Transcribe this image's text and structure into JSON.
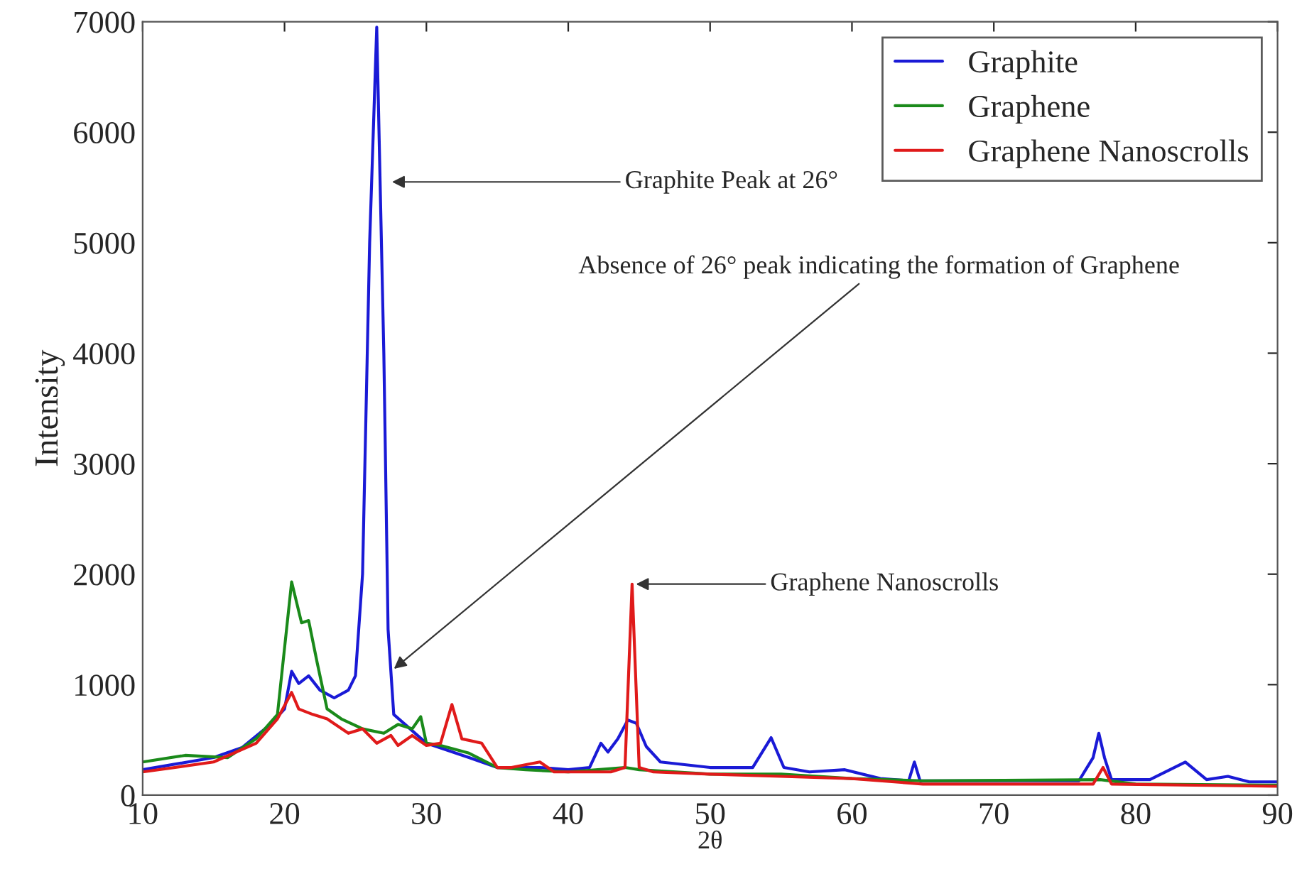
{
  "chart_data": {
    "type": "line",
    "xlabel": "2θ",
    "ylabel": "Intensity",
    "xlim": [
      10,
      90
    ],
    "ylim": [
      0,
      7000
    ],
    "xticks": [
      10,
      20,
      30,
      40,
      50,
      60,
      70,
      80,
      90
    ],
    "yticks": [
      0,
      1000,
      2000,
      3000,
      4000,
      5000,
      6000,
      7000
    ],
    "grid": false,
    "legend": "top right",
    "series": [
      {
        "name": "Graphite",
        "color": "#1a1ad6",
        "x": [
          10,
          15,
          17,
          19,
          20,
          20.5,
          21,
          21.7,
          22.5,
          23.5,
          24.5,
          25,
          25.5,
          26,
          26.5,
          27,
          27.3,
          27.7,
          28.5,
          30,
          33,
          35,
          38,
          40,
          41.5,
          42.3,
          42.8,
          43.5,
          44.2,
          44.8,
          45.5,
          46.5,
          50,
          53,
          54.3,
          55.2,
          57,
          59.5,
          62,
          64,
          64.4,
          64.8,
          70,
          76,
          77,
          77.4,
          77.8,
          78.3,
          81,
          83.5,
          85,
          86.5,
          88,
          90
        ],
        "values": [
          230,
          340,
          430,
          640,
          780,
          1120,
          1010,
          1080,
          950,
          880,
          950,
          1080,
          2000,
          5000,
          6950,
          4000,
          1500,
          730,
          640,
          470,
          340,
          250,
          250,
          230,
          250,
          470,
          390,
          510,
          680,
          650,
          440,
          300,
          250,
          250,
          520,
          250,
          210,
          230,
          150,
          130,
          300,
          130,
          130,
          130,
          340,
          560,
          340,
          140,
          140,
          300,
          140,
          170,
          120,
          120
        ]
      },
      {
        "name": "Graphene",
        "color": "#1a8a1a",
        "x": [
          10,
          13,
          16,
          18,
          19.5,
          20.5,
          21.2,
          21.7,
          22.3,
          23,
          24,
          25.5,
          27,
          28,
          29,
          29.6,
          30,
          31,
          33,
          35,
          37,
          40,
          44,
          45,
          50,
          55,
          60,
          65,
          77.5,
          80,
          90
        ],
        "values": [
          300,
          360,
          340,
          510,
          730,
          1930,
          1560,
          1580,
          1200,
          780,
          690,
          600,
          560,
          640,
          600,
          710,
          470,
          450,
          380,
          250,
          230,
          210,
          250,
          230,
          190,
          190,
          150,
          130,
          140,
          100,
          90
        ]
      },
      {
        "name": "Graphene Nanoscrolls",
        "color": "#e01a1a",
        "x": [
          10,
          15,
          18,
          19.5,
          20.5,
          21,
          22,
          23,
          24.5,
          25.5,
          26.5,
          27.5,
          28,
          29,
          30,
          31,
          31.8,
          32.5,
          33.9,
          35,
          36,
          38,
          39,
          43,
          44,
          44.5,
          45,
          46,
          50,
          55,
          60,
          65,
          77,
          77.7,
          78.3,
          90
        ],
        "values": [
          210,
          300,
          470,
          690,
          930,
          780,
          730,
          690,
          560,
          600,
          470,
          540,
          450,
          540,
          450,
          470,
          820,
          510,
          470,
          250,
          250,
          300,
          210,
          210,
          250,
          1910,
          250,
          210,
          190,
          170,
          150,
          100,
          100,
          250,
          100,
          80
        ]
      }
    ],
    "annotations": [
      {
        "text": "Graphite Peak at 26°",
        "x": 27.3,
        "y": 5550
      },
      {
        "text": "Absence of 26° peak indicating the formation of Graphene",
        "x": 27.5,
        "y": 1120
      },
      {
        "text": "Graphene Nanoscrolls",
        "x": 44.5,
        "y": 1910
      }
    ]
  }
}
